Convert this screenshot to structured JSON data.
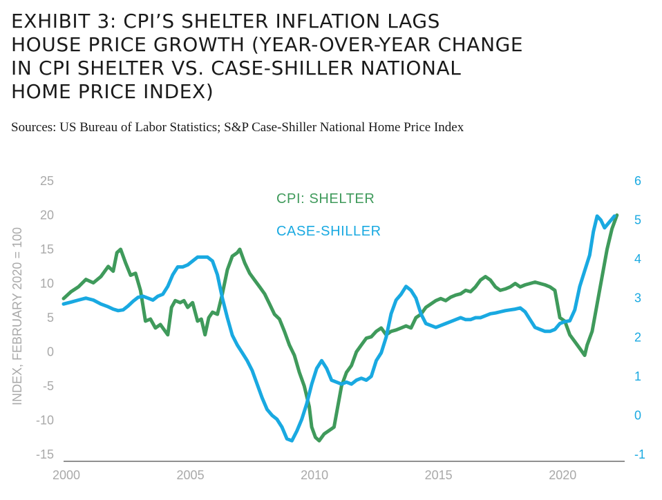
{
  "title_lines": [
    "EXHIBIT 3: CPI’S SHELTER INFLATION LAGS",
    "HOUSE PRICE GROWTH (YEAR-OVER-YEAR CHANGE",
    "IN CPI SHELTER VS. CASE-SHILLER NATIONAL",
    "HOME PRICE INDEX)"
  ],
  "source": "Sources: US Bureau of Labor Statistics; S&P Case-Shiller National Home Price Index",
  "colors": {
    "shelter": "#3f9a5b",
    "case_shiller": "#19a9e1",
    "left_axis": "#a9a9a9",
    "right_axis": "#19a9e1"
  },
  "chart_data": {
    "type": "line",
    "ylabel": "INDEX, FEBRUARY 2020 = 100",
    "x_ticks": [
      2000,
      2005,
      2010,
      2015,
      2020
    ],
    "xlim": [
      2000,
      2022.5
    ],
    "left_axis": {
      "ticks": [
        25,
        20,
        15,
        10,
        5,
        0,
        -5,
        -10,
        -15
      ],
      "ylim": [
        -15,
        25
      ]
    },
    "right_axis": {
      "ticks": [
        6,
        5,
        4,
        3,
        2,
        1,
        0,
        -1
      ],
      "ylim": [
        -1,
        6
      ]
    },
    "series": [
      {
        "name": "CPI: SHELTER",
        "axis": "left",
        "points": [
          [
            2000.0,
            7.8
          ],
          [
            2000.3,
            8.8
          ],
          [
            2000.6,
            9.5
          ],
          [
            2000.9,
            10.6
          ],
          [
            2001.2,
            10.1
          ],
          [
            2001.5,
            11.0
          ],
          [
            2001.8,
            12.5
          ],
          [
            2002.0,
            11.8
          ],
          [
            2002.15,
            14.5
          ],
          [
            2002.3,
            15.0
          ],
          [
            2002.5,
            13.0
          ],
          [
            2002.7,
            11.2
          ],
          [
            2002.9,
            11.5
          ],
          [
            2003.1,
            9.0
          ],
          [
            2003.3,
            4.5
          ],
          [
            2003.5,
            4.8
          ],
          [
            2003.7,
            3.5
          ],
          [
            2003.9,
            4.0
          ],
          [
            2004.1,
            3.0
          ],
          [
            2004.2,
            2.5
          ],
          [
            2004.35,
            6.5
          ],
          [
            2004.5,
            7.5
          ],
          [
            2004.7,
            7.2
          ],
          [
            2004.85,
            7.5
          ],
          [
            2005.0,
            6.5
          ],
          [
            2005.2,
            7.2
          ],
          [
            2005.4,
            4.5
          ],
          [
            2005.55,
            4.8
          ],
          [
            2005.7,
            2.5
          ],
          [
            2005.85,
            5.0
          ],
          [
            2006.0,
            5.8
          ],
          [
            2006.2,
            5.5
          ],
          [
            2006.4,
            8.5
          ],
          [
            2006.6,
            12.0
          ],
          [
            2006.8,
            14.0
          ],
          [
            2007.0,
            14.5
          ],
          [
            2007.1,
            15.0
          ],
          [
            2007.3,
            13.0
          ],
          [
            2007.5,
            11.5
          ],
          [
            2007.7,
            10.5
          ],
          [
            2007.9,
            9.5
          ],
          [
            2008.1,
            8.5
          ],
          [
            2008.3,
            7.0
          ],
          [
            2008.5,
            5.5
          ],
          [
            2008.7,
            4.8
          ],
          [
            2008.9,
            3.0
          ],
          [
            2009.1,
            1.0
          ],
          [
            2009.3,
            -0.5
          ],
          [
            2009.5,
            -3.0
          ],
          [
            2009.7,
            -5.0
          ],
          [
            2009.9,
            -8.0
          ],
          [
            2010.0,
            -11.0
          ],
          [
            2010.15,
            -12.5
          ],
          [
            2010.3,
            -13.0
          ],
          [
            2010.5,
            -12.0
          ],
          [
            2010.7,
            -11.5
          ],
          [
            2010.9,
            -11.0
          ],
          [
            2011.0,
            -9.0
          ],
          [
            2011.2,
            -5.0
          ],
          [
            2011.4,
            -3.0
          ],
          [
            2011.6,
            -2.0
          ],
          [
            2011.8,
            0.0
          ],
          [
            2012.0,
            1.0
          ],
          [
            2012.2,
            2.0
          ],
          [
            2012.4,
            2.2
          ],
          [
            2012.6,
            3.0
          ],
          [
            2012.8,
            3.5
          ],
          [
            2013.0,
            2.5
          ],
          [
            2013.2,
            3.0
          ],
          [
            2013.4,
            3.2
          ],
          [
            2013.6,
            3.5
          ],
          [
            2013.8,
            3.8
          ],
          [
            2014.0,
            3.5
          ],
          [
            2014.2,
            5.0
          ],
          [
            2014.4,
            5.5
          ],
          [
            2014.6,
            6.5
          ],
          [
            2014.8,
            7.0
          ],
          [
            2015.0,
            7.5
          ],
          [
            2015.2,
            7.8
          ],
          [
            2015.4,
            7.5
          ],
          [
            2015.6,
            8.0
          ],
          [
            2015.8,
            8.3
          ],
          [
            2016.0,
            8.5
          ],
          [
            2016.2,
            9.0
          ],
          [
            2016.4,
            8.8
          ],
          [
            2016.6,
            9.5
          ],
          [
            2016.8,
            10.5
          ],
          [
            2017.0,
            11.0
          ],
          [
            2017.2,
            10.5
          ],
          [
            2017.4,
            9.5
          ],
          [
            2017.6,
            9.0
          ],
          [
            2017.8,
            9.2
          ],
          [
            2018.0,
            9.5
          ],
          [
            2018.2,
            10.0
          ],
          [
            2018.4,
            9.5
          ],
          [
            2018.6,
            9.8
          ],
          [
            2018.8,
            10.0
          ],
          [
            2019.0,
            10.2
          ],
          [
            2019.2,
            10.0
          ],
          [
            2019.4,
            9.8
          ],
          [
            2019.6,
            9.5
          ],
          [
            2019.8,
            9.0
          ],
          [
            2020.0,
            5.0
          ],
          [
            2020.2,
            4.5
          ],
          [
            2020.4,
            2.5
          ],
          [
            2020.6,
            1.5
          ],
          [
            2020.8,
            0.5
          ],
          [
            2021.0,
            -0.5
          ],
          [
            2021.1,
            1.0
          ],
          [
            2021.3,
            3.0
          ],
          [
            2021.5,
            7.0
          ],
          [
            2021.7,
            11.0
          ],
          [
            2021.9,
            15.0
          ],
          [
            2022.1,
            18.0
          ],
          [
            2022.3,
            20.0
          ]
        ]
      },
      {
        "name": "CASE-SHILLER",
        "axis": "right",
        "points": [
          [
            2000.0,
            2.85
          ],
          [
            2000.3,
            2.9
          ],
          [
            2000.6,
            2.95
          ],
          [
            2000.9,
            3.0
          ],
          [
            2001.2,
            2.95
          ],
          [
            2001.5,
            2.85
          ],
          [
            2001.8,
            2.78
          ],
          [
            2002.0,
            2.72
          ],
          [
            2002.2,
            2.68
          ],
          [
            2002.4,
            2.7
          ],
          [
            2002.6,
            2.8
          ],
          [
            2002.8,
            2.92
          ],
          [
            2003.0,
            3.02
          ],
          [
            2003.2,
            3.05
          ],
          [
            2003.4,
            3.0
          ],
          [
            2003.6,
            2.95
          ],
          [
            2003.8,
            3.05
          ],
          [
            2004.0,
            3.1
          ],
          [
            2004.2,
            3.3
          ],
          [
            2004.4,
            3.6
          ],
          [
            2004.6,
            3.8
          ],
          [
            2004.8,
            3.8
          ],
          [
            2005.0,
            3.85
          ],
          [
            2005.2,
            3.95
          ],
          [
            2005.4,
            4.05
          ],
          [
            2005.6,
            4.05
          ],
          [
            2005.8,
            4.05
          ],
          [
            2006.0,
            3.95
          ],
          [
            2006.2,
            3.6
          ],
          [
            2006.4,
            3.0
          ],
          [
            2006.6,
            2.5
          ],
          [
            2006.8,
            2.05
          ],
          [
            2007.0,
            1.8
          ],
          [
            2007.2,
            1.6
          ],
          [
            2007.4,
            1.4
          ],
          [
            2007.6,
            1.15
          ],
          [
            2007.8,
            0.8
          ],
          [
            2008.0,
            0.45
          ],
          [
            2008.2,
            0.15
          ],
          [
            2008.4,
            0.0
          ],
          [
            2008.6,
            -0.1
          ],
          [
            2008.8,
            -0.3
          ],
          [
            2009.0,
            -0.6
          ],
          [
            2009.2,
            -0.65
          ],
          [
            2009.4,
            -0.4
          ],
          [
            2009.6,
            -0.1
          ],
          [
            2009.8,
            0.3
          ],
          [
            2010.0,
            0.8
          ],
          [
            2010.2,
            1.2
          ],
          [
            2010.4,
            1.4
          ],
          [
            2010.6,
            1.2
          ],
          [
            2010.8,
            0.9
          ],
          [
            2011.0,
            0.85
          ],
          [
            2011.2,
            0.8
          ],
          [
            2011.4,
            0.85
          ],
          [
            2011.6,
            0.8
          ],
          [
            2011.8,
            0.9
          ],
          [
            2012.0,
            0.95
          ],
          [
            2012.2,
            0.9
          ],
          [
            2012.4,
            1.0
          ],
          [
            2012.6,
            1.4
          ],
          [
            2012.8,
            1.6
          ],
          [
            2013.0,
            2.0
          ],
          [
            2013.2,
            2.6
          ],
          [
            2013.4,
            2.95
          ],
          [
            2013.6,
            3.1
          ],
          [
            2013.8,
            3.3
          ],
          [
            2014.0,
            3.2
          ],
          [
            2014.2,
            3.0
          ],
          [
            2014.4,
            2.6
          ],
          [
            2014.6,
            2.35
          ],
          [
            2014.8,
            2.3
          ],
          [
            2015.0,
            2.25
          ],
          [
            2015.2,
            2.3
          ],
          [
            2015.4,
            2.35
          ],
          [
            2015.6,
            2.4
          ],
          [
            2015.8,
            2.45
          ],
          [
            2016.0,
            2.5
          ],
          [
            2016.2,
            2.45
          ],
          [
            2016.4,
            2.45
          ],
          [
            2016.6,
            2.5
          ],
          [
            2016.8,
            2.5
          ],
          [
            2017.0,
            2.55
          ],
          [
            2017.2,
            2.6
          ],
          [
            2017.4,
            2.62
          ],
          [
            2017.6,
            2.65
          ],
          [
            2017.8,
            2.68
          ],
          [
            2018.0,
            2.7
          ],
          [
            2018.2,
            2.72
          ],
          [
            2018.4,
            2.75
          ],
          [
            2018.6,
            2.65
          ],
          [
            2018.8,
            2.45
          ],
          [
            2019.0,
            2.25
          ],
          [
            2019.2,
            2.2
          ],
          [
            2019.4,
            2.15
          ],
          [
            2019.6,
            2.15
          ],
          [
            2019.8,
            2.2
          ],
          [
            2020.0,
            2.35
          ],
          [
            2020.2,
            2.4
          ],
          [
            2020.4,
            2.42
          ],
          [
            2020.6,
            2.7
          ],
          [
            2020.8,
            3.3
          ],
          [
            2021.0,
            3.7
          ],
          [
            2021.2,
            4.1
          ],
          [
            2021.35,
            4.7
          ],
          [
            2021.5,
            5.1
          ],
          [
            2021.65,
            5.0
          ],
          [
            2021.8,
            4.8
          ],
          [
            2022.0,
            4.95
          ],
          [
            2022.2,
            5.1
          ]
        ]
      }
    ]
  }
}
